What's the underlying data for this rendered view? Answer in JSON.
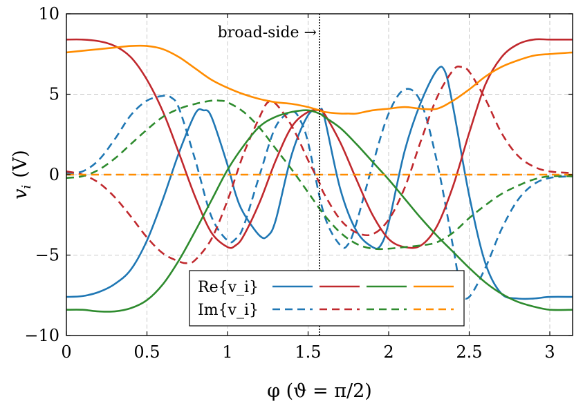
{
  "chart_data": {
    "type": "line",
    "xlabel": "φ (ϑ = π/2)",
    "ylabel": "v_i (V)",
    "ylabel_main": "v",
    "ylabel_sub": "i",
    "ylabel_unit": "(V)",
    "xlim": [
      0,
      3.1416
    ],
    "ylim": [
      -10,
      10
    ],
    "xticks": [
      0,
      0.5,
      1,
      1.5,
      2,
      2.5,
      3
    ],
    "xtick_labels": [
      "0",
      "0.5",
      "1",
      "1.5",
      "2",
      "2.5",
      "3"
    ],
    "yticks": [
      -10,
      -5,
      0,
      5,
      10
    ],
    "ytick_labels": [
      "−10",
      "−5",
      "0",
      "5",
      "10"
    ],
    "grid": true,
    "legend_position": "bottom-center",
    "legend": {
      "row_re": "Re{v_i}",
      "row_im": "Im{v_i}"
    },
    "annotation": {
      "text": "broad-side →",
      "x": 1.5708
    },
    "colors": {
      "blue": "#1f77b4",
      "red": "#c0282d",
      "green": "#2e8b2e",
      "orange": "#ff8c00"
    },
    "series": [
      {
        "color": "blue",
        "dashed": false,
        "x": [
          0,
          0.1,
          0.2,
          0.3,
          0.4,
          0.5,
          0.6,
          0.7,
          0.8,
          0.85,
          0.9,
          1.0,
          1.05,
          1.1,
          1.2,
          1.25,
          1.3,
          1.4,
          1.5,
          1.57,
          1.6,
          1.7,
          1.8,
          1.9,
          1.95,
          2.0,
          2.1,
          2.2,
          2.3,
          2.35,
          2.4,
          2.5,
          2.6,
          2.7,
          2.8,
          2.9,
          3.0,
          3.1416
        ],
        "y": [
          -7.6,
          -7.55,
          -7.3,
          -6.8,
          -5.9,
          -4.1,
          -1.5,
          1.4,
          3.8,
          4.0,
          3.6,
          0.6,
          -1.2,
          -2.4,
          -3.8,
          -3.8,
          -2.8,
          1.3,
          3.7,
          4.0,
          3.6,
          -0.9,
          -3.5,
          -4.5,
          -4.4,
          -3.0,
          1.5,
          4.5,
          6.5,
          6.4,
          4.2,
          -1.3,
          -5.5,
          -7.4,
          -7.7,
          -7.7,
          -7.6,
          -7.6
        ]
      },
      {
        "color": "blue",
        "dashed": true,
        "x": [
          0,
          0.1,
          0.2,
          0.3,
          0.4,
          0.5,
          0.6,
          0.65,
          0.7,
          0.8,
          0.9,
          1.0,
          1.05,
          1.1,
          1.2,
          1.3,
          1.4,
          1.45,
          1.5,
          1.6,
          1.7,
          1.75,
          1.8,
          1.9,
          2.0,
          2.1,
          2.2,
          2.3,
          2.4,
          2.45,
          2.5,
          2.6,
          2.7,
          2.8,
          2.9,
          3.0,
          3.1416
        ],
        "y": [
          0.1,
          0.2,
          0.9,
          2.2,
          3.7,
          4.6,
          4.9,
          4.8,
          4.1,
          0.9,
          -2.6,
          -4.1,
          -4.0,
          -3.2,
          0.0,
          3.0,
          3.9,
          3.4,
          2.0,
          -2.5,
          -4.4,
          -4.3,
          -3.0,
          0.6,
          3.8,
          5.3,
          4.5,
          0.8,
          -4.5,
          -7.2,
          -7.6,
          -5.8,
          -3.4,
          -1.6,
          -0.6,
          -0.2,
          -0.1
        ]
      },
      {
        "color": "red",
        "dashed": false,
        "x": [
          0,
          0.1,
          0.2,
          0.3,
          0.4,
          0.5,
          0.6,
          0.7,
          0.8,
          0.9,
          1.0,
          1.05,
          1.1,
          1.2,
          1.3,
          1.4,
          1.5,
          1.57,
          1.6,
          1.7,
          1.8,
          1.9,
          2.0,
          2.1,
          2.2,
          2.3,
          2.4,
          2.5,
          2.6,
          2.7,
          2.8,
          2.9,
          3.0,
          3.1416
        ],
        "y": [
          8.4,
          8.4,
          8.3,
          8.0,
          7.3,
          5.9,
          3.9,
          1.3,
          -1.4,
          -3.6,
          -4.5,
          -4.4,
          -3.8,
          -1.7,
          0.9,
          3.0,
          3.9,
          4.0,
          3.8,
          2.0,
          -0.3,
          -2.5,
          -4.0,
          -4.5,
          -4.4,
          -3.2,
          -0.7,
          2.6,
          5.6,
          7.3,
          8.1,
          8.4,
          8.4,
          8.4
        ]
      },
      {
        "color": "red",
        "dashed": true,
        "x": [
          0,
          0.1,
          0.2,
          0.3,
          0.4,
          0.5,
          0.6,
          0.7,
          0.75,
          0.8,
          0.9,
          1.0,
          1.1,
          1.2,
          1.25,
          1.3,
          1.4,
          1.5,
          1.57,
          1.6,
          1.7,
          1.8,
          1.9,
          2.0,
          2.1,
          2.2,
          2.3,
          2.4,
          2.45,
          2.5,
          2.6,
          2.7,
          2.8,
          2.9,
          3.0,
          3.1416
        ],
        "y": [
          0.2,
          0.0,
          -0.5,
          -1.4,
          -2.6,
          -3.9,
          -4.9,
          -5.4,
          -5.5,
          -5.3,
          -4.0,
          -1.6,
          1.3,
          3.6,
          4.5,
          4.4,
          3.0,
          0.9,
          -0.5,
          -1.2,
          -2.8,
          -3.6,
          -3.7,
          -2.8,
          -0.8,
          2.1,
          4.8,
          6.5,
          6.7,
          6.4,
          4.7,
          2.6,
          1.2,
          0.5,
          0.2,
          0.1
        ]
      },
      {
        "color": "green",
        "dashed": false,
        "x": [
          0,
          0.1,
          0.2,
          0.3,
          0.4,
          0.5,
          0.6,
          0.7,
          0.8,
          0.9,
          1.0,
          1.1,
          1.2,
          1.3,
          1.4,
          1.5,
          1.57,
          1.6,
          1.7,
          1.8,
          1.9,
          2.0,
          2.1,
          2.2,
          2.3,
          2.4,
          2.5,
          2.6,
          2.7,
          2.8,
          2.9,
          3.0,
          3.1416
        ],
        "y": [
          -8.4,
          -8.4,
          -8.5,
          -8.5,
          -8.3,
          -7.8,
          -6.8,
          -5.3,
          -3.5,
          -1.6,
          0.3,
          1.8,
          3.0,
          3.6,
          3.9,
          4.0,
          3.8,
          3.6,
          2.9,
          1.9,
          0.8,
          -0.3,
          -1.5,
          -2.7,
          -3.8,
          -4.8,
          -5.8,
          -6.7,
          -7.4,
          -7.9,
          -8.2,
          -8.4,
          -8.4
        ]
      },
      {
        "color": "green",
        "dashed": true,
        "x": [
          0,
          0.1,
          0.2,
          0.3,
          0.4,
          0.5,
          0.6,
          0.7,
          0.8,
          0.9,
          0.95,
          1.0,
          1.1,
          1.2,
          1.3,
          1.4,
          1.5,
          1.6,
          1.7,
          1.8,
          1.9,
          2.0,
          2.1,
          2.2,
          2.3,
          2.4,
          2.5,
          2.6,
          2.7,
          2.8,
          2.9,
          3.0,
          3.1416
        ],
        "y": [
          -0.2,
          -0.1,
          0.3,
          1.0,
          1.9,
          2.8,
          3.6,
          4.1,
          4.4,
          4.6,
          4.6,
          4.5,
          3.9,
          2.9,
          1.6,
          0.3,
          -1.1,
          -2.5,
          -3.6,
          -4.3,
          -4.6,
          -4.6,
          -4.5,
          -4.4,
          -4.2,
          -3.6,
          -2.7,
          -1.9,
          -1.2,
          -0.7,
          -0.3,
          -0.1,
          -0.1
        ]
      },
      {
        "color": "orange",
        "dashed": false,
        "x": [
          0,
          0.1,
          0.2,
          0.3,
          0.4,
          0.5,
          0.6,
          0.7,
          0.8,
          0.9,
          1.0,
          1.1,
          1.2,
          1.3,
          1.4,
          1.5,
          1.57,
          1.6,
          1.7,
          1.75,
          1.8,
          1.9,
          2.0,
          2.1,
          2.2,
          2.3,
          2.4,
          2.5,
          2.6,
          2.7,
          2.8,
          2.9,
          3.0,
          3.1416
        ],
        "y": [
          7.6,
          7.7,
          7.8,
          7.9,
          8.0,
          8.0,
          7.8,
          7.3,
          6.6,
          5.9,
          5.4,
          5.0,
          4.7,
          4.5,
          4.4,
          4.2,
          4.0,
          3.9,
          3.8,
          3.8,
          3.8,
          4.0,
          4.1,
          4.2,
          4.1,
          4.1,
          4.6,
          5.3,
          6.1,
          6.7,
          7.1,
          7.4,
          7.5,
          7.6
        ]
      },
      {
        "color": "orange",
        "dashed": true,
        "x": [
          0,
          3.1416
        ],
        "y": [
          0,
          0
        ]
      }
    ]
  }
}
